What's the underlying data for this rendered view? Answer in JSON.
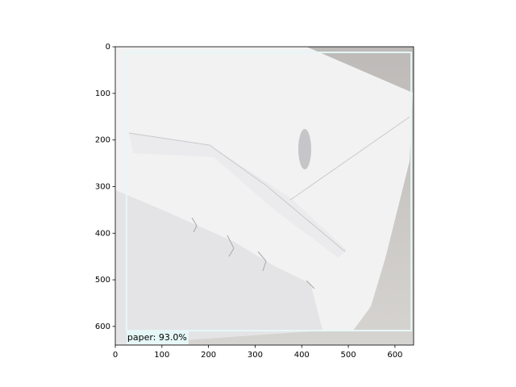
{
  "chart_data": {
    "type": "image",
    "xlim": [
      0,
      640
    ],
    "ylim": [
      640,
      0
    ],
    "xticks": [
      0,
      100,
      200,
      300,
      400,
      500,
      600
    ],
    "yticks": [
      0,
      100,
      200,
      300,
      400,
      500,
      600
    ],
    "boxes": [
      {
        "x0": 24,
        "y0": 12,
        "x1": 635,
        "y1": 609,
        "label": "paper: 93.0%",
        "color": "#e6f7f7"
      }
    ]
  }
}
